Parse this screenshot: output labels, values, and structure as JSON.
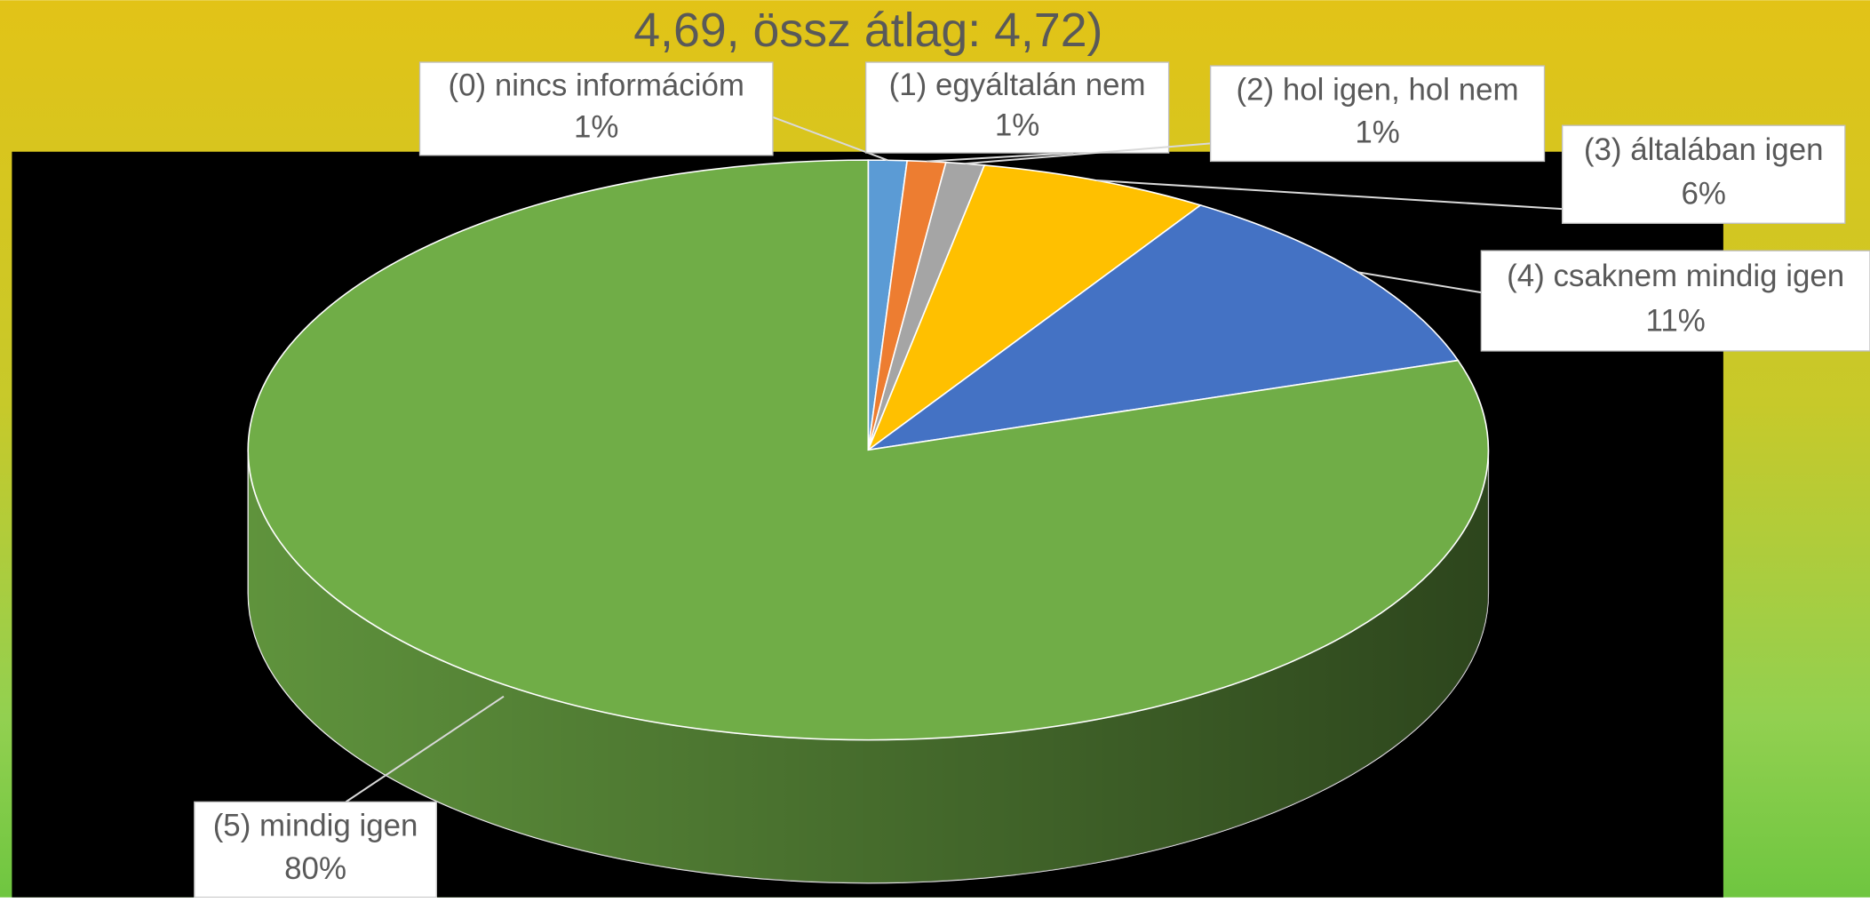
{
  "chart_data": {
    "type": "pie",
    "title": "4,69, össz átlag: 4,72)",
    "categories": [
      "(0) nincs információm",
      "(1) egyáltalán nem",
      "(2) hol igen, hol nem",
      "(3) általában igen",
      "(4) csaknem mindig igen",
      "(5) mindig igen"
    ],
    "values": [
      1,
      1,
      1,
      6,
      11,
      80
    ],
    "value_labels": [
      "1%",
      "1%",
      "1%",
      "6%",
      "11%",
      "80%"
    ],
    "colors": [
      "#5b9bd5",
      "#ed7d31",
      "#a5a5a5",
      "#ffc000",
      "#4472c4",
      "#70ad47"
    ]
  }
}
